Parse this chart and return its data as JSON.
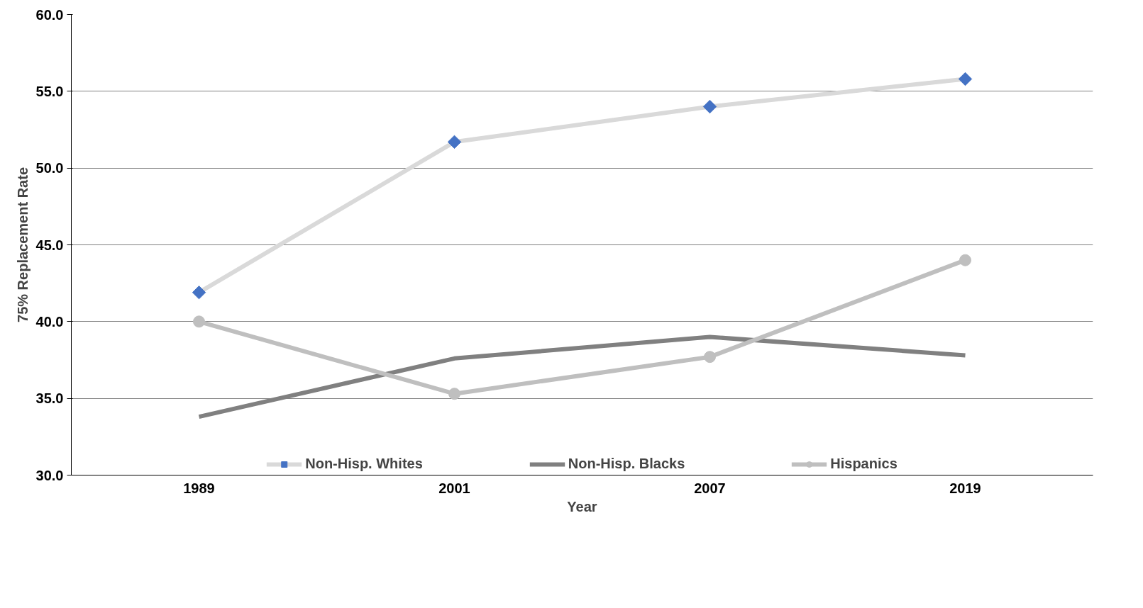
{
  "chart_data": {
    "type": "line",
    "xlabel": "Year",
    "ylabel": "75% Replacement Rate",
    "categories": [
      "1989",
      "2001",
      "2007",
      "2019"
    ],
    "series": [
      {
        "name": "Non-Hisp. Whites",
        "color": "#d9d9d9",
        "marker": "diamond",
        "colors": [
          "#4472c4",
          "#4472c4",
          "#4472c4",
          "#4472c4"
        ],
        "values": [
          41.9,
          51.7,
          54.0,
          55.8
        ]
      },
      {
        "name": "Non-Hisp. Blacks",
        "color": "#808080",
        "marker": "none",
        "values": [
          33.8,
          37.6,
          39.0,
          37.8
        ]
      },
      {
        "name": "Hispanics",
        "color": "#bfbfbf",
        "marker": "circle",
        "values": [
          40.0,
          35.3,
          37.7,
          44.0
        ]
      }
    ],
    "ylim": [
      30,
      60
    ],
    "yticks": [
      {
        "value": 30,
        "label": "30.0"
      },
      {
        "value": 35,
        "label": "35.0"
      },
      {
        "value": 40,
        "label": "40.0"
      },
      {
        "value": 45,
        "label": "45.0"
      },
      {
        "value": 50,
        "label": "50.0"
      },
      {
        "value": 55,
        "label": "55.0"
      },
      {
        "value": 60,
        "label": "60.0"
      }
    ],
    "grid": "y",
    "legend": "bottom",
    "line_style": "solid"
  }
}
